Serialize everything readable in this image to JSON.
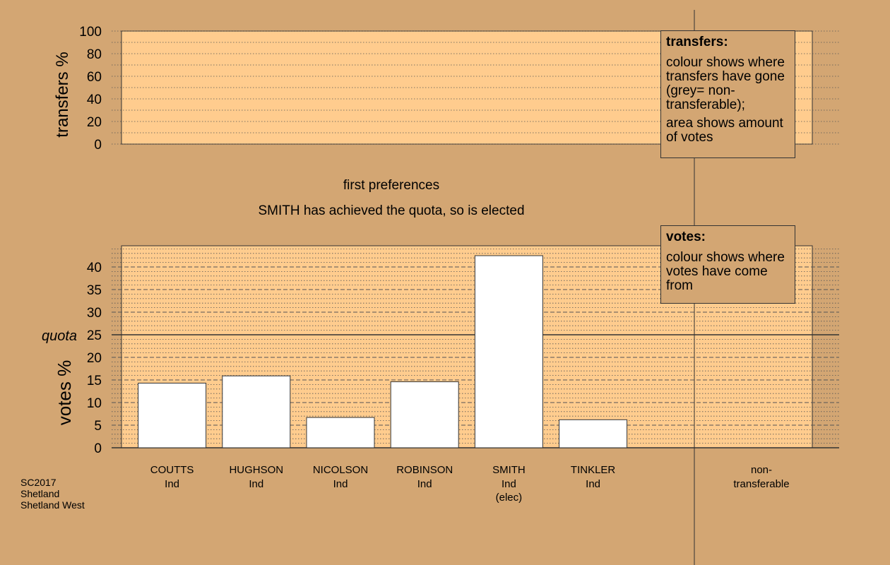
{
  "top": {
    "ylabel": "transfers %",
    "yticks": [
      0,
      20,
      40,
      60,
      80,
      100
    ],
    "ylim": [
      0,
      100
    ]
  },
  "captions": {
    "stage": "first preferences",
    "status": "SMITH has achieved the quota, so is elected"
  },
  "legend_transfers": {
    "title": "transfers:",
    "line1": "colour shows where transfers have gone (grey= non-transferable);",
    "line2": "area shows amount of votes"
  },
  "legend_votes": {
    "title": "votes:",
    "line1": "colour shows where votes have come from"
  },
  "footer": {
    "line1": "SC2017",
    "line2": "Shetland",
    "line3": "Shetland West"
  },
  "colors": {
    "background": "#d3a673",
    "plot_bg": "#ffcc8e",
    "bar": "#ffffff"
  },
  "chart_data": {
    "type": "bar",
    "ylabel": "votes %",
    "ylim": [
      0,
      45
    ],
    "yticks": [
      0,
      5,
      10,
      15,
      20,
      25,
      30,
      35,
      40
    ],
    "quota": 25,
    "quota_label": "quota",
    "categories": [
      "COUTTS",
      "HUGHSON",
      "NICOLSON",
      "ROBINSON",
      "SMITH",
      "TINKLER",
      "non-transferable"
    ],
    "sublabels": [
      "Ind",
      "Ind",
      "Ind",
      "Ind",
      "Ind",
      "Ind",
      "transferable"
    ],
    "notes": [
      "",
      "",
      "",
      "",
      "(elec)",
      "",
      ""
    ],
    "values": [
      14.3,
      15.9,
      6.7,
      14.6,
      42.5,
      6.2,
      0
    ],
    "grid": true
  }
}
